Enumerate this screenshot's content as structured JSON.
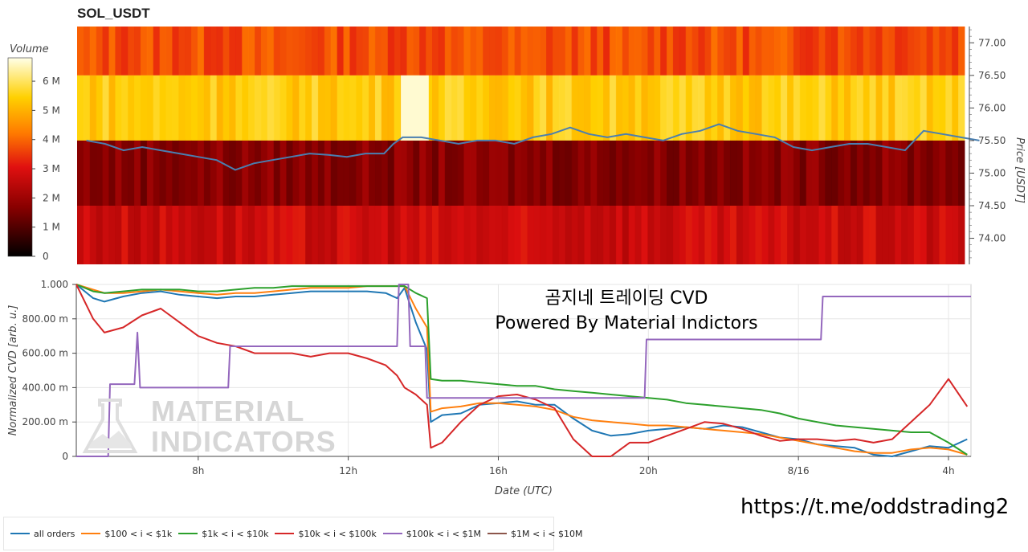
{
  "title": "SOL_USDT",
  "colorbar": {
    "label": "Volume",
    "ticks": [
      {
        "label": "6 M",
        "value": 6000000
      },
      {
        "label": "5 M",
        "value": 5000000
      },
      {
        "label": "4 M",
        "value": 4000000
      },
      {
        "label": "3 M",
        "value": 3000000
      },
      {
        "label": "2 M",
        "value": 2000000
      },
      {
        "label": "1 M",
        "value": 1000000
      },
      {
        "label": "0",
        "value": 0
      }
    ],
    "range": [
      0,
      6800000
    ]
  },
  "watermark": {
    "line1": "MATERIAL",
    "line2": "INDICATORS"
  },
  "cvd_title": {
    "line1": "곰지네 트레이딩 CVD",
    "line2": "Powered By Material Indictors"
  },
  "url": "https://t.me/oddstrading2",
  "colors": {
    "all_orders": "#1f77b4",
    "b100_1k": "#ff7f0e",
    "b1k_10k": "#2ca02c",
    "b10k_100k": "#d62728",
    "b100k_1m": "#9467bd",
    "b1m_10m": "#8c564b"
  },
  "chart_data": [
    {
      "type": "heatmap",
      "title": "SOL_USDT",
      "ylabel": "Price [USDT]",
      "yticks": [
        "77.00",
        "76.50",
        "76.00",
        "75.50",
        "75.00",
        "74.50",
        "74.00"
      ],
      "ylim": [
        73.6,
        77.25
      ],
      "bands": [
        {
          "price_low": 76.5,
          "price_high": 77.25,
          "level": 0.55,
          "volume": "~3.7 M"
        },
        {
          "price_low": 75.5,
          "price_high": 76.5,
          "level": 0.8,
          "volume": "~4.3 M"
        },
        {
          "price_low": 74.5,
          "price_high": 75.5,
          "level": 0.25,
          "volume": "~1.6 M"
        },
        {
          "price_low": 73.6,
          "price_high": 74.5,
          "level": 0.4,
          "volume": "~2.4 M"
        }
      ],
      "price_line": {
        "name": "price",
        "color": "#4a7fb0",
        "x_hours": [
          5,
          5.5,
          6,
          6.5,
          7,
          7.5,
          8,
          8.5,
          9,
          9.5,
          10,
          10.5,
          11,
          11.5,
          12,
          12.5,
          13,
          13.25,
          13.5,
          14,
          14.5,
          15,
          15.5,
          16,
          16.5,
          17,
          17.5,
          18,
          18.5,
          19,
          19.5,
          20,
          20.5,
          21,
          21.5,
          22,
          22.5,
          23,
          23.5,
          24,
          24.5,
          25,
          25.5,
          26,
          26.5,
          27,
          27.5,
          28,
          28.5,
          29
        ],
        "y": [
          75.5,
          75.45,
          75.35,
          75.4,
          75.35,
          75.3,
          75.25,
          75.2,
          75.05,
          75.15,
          75.2,
          75.25,
          75.3,
          75.28,
          75.25,
          75.3,
          75.3,
          75.45,
          75.55,
          75.55,
          75.5,
          75.45,
          75.5,
          75.5,
          75.45,
          75.55,
          75.6,
          75.7,
          75.6,
          75.55,
          75.6,
          75.55,
          75.5,
          75.6,
          75.65,
          75.75,
          75.65,
          75.6,
          75.55,
          75.4,
          75.35,
          75.4,
          75.45,
          75.45,
          75.4,
          75.35,
          75.65,
          75.6,
          75.55,
          75.5
        ]
      }
    },
    {
      "type": "line",
      "xlabel": "Date (UTC)",
      "ylabel": "Normalized CVD [arb. u.]",
      "xticks": [
        {
          "label": "8h",
          "hour": 8
        },
        {
          "label": "12h",
          "hour": 12
        },
        {
          "label": "16h",
          "hour": 16
        },
        {
          "label": "20h",
          "hour": 20
        },
        {
          "label": "8/16",
          "hour": 24
        },
        {
          "label": "4h",
          "hour": 28
        }
      ],
      "xlim": [
        4.75,
        28.6
      ],
      "yticks": [
        {
          "label": "1.000",
          "value": 1.0
        },
        {
          "label": "800.00 m",
          "value": 0.8
        },
        {
          "label": "600.00 m",
          "value": 0.6
        },
        {
          "label": "400.00 m",
          "value": 0.4
        },
        {
          "label": "200.00 m",
          "value": 0.2
        },
        {
          "label": "0",
          "value": 0
        }
      ],
      "ylim": [
        0,
        1.0
      ],
      "legend_position": "bottom-left",
      "series": [
        {
          "name": "all orders",
          "key": "all_orders",
          "x": [
            4.75,
            5.2,
            5.5,
            6,
            6.5,
            7,
            7.5,
            8,
            8.5,
            9,
            9.5,
            10,
            10.5,
            11,
            11.5,
            12,
            12.5,
            13,
            13.3,
            13.5,
            13.8,
            14.1,
            14.2,
            14.5,
            15,
            15.5,
            16,
            16.5,
            17,
            17.5,
            18,
            18.5,
            19,
            19.5,
            20,
            20.5,
            21,
            21.5,
            22,
            22.5,
            23,
            23.5,
            24,
            24.5,
            25,
            25.5,
            26,
            26.5,
            27,
            27.5,
            28,
            28.5
          ],
          "y": [
            1.0,
            0.92,
            0.9,
            0.93,
            0.95,
            0.96,
            0.94,
            0.93,
            0.92,
            0.93,
            0.93,
            0.94,
            0.95,
            0.96,
            0.96,
            0.96,
            0.96,
            0.95,
            0.92,
            0.98,
            0.78,
            0.62,
            0.2,
            0.24,
            0.25,
            0.3,
            0.31,
            0.32,
            0.3,
            0.3,
            0.22,
            0.15,
            0.12,
            0.13,
            0.15,
            0.16,
            0.17,
            0.16,
            0.18,
            0.17,
            0.14,
            0.11,
            0.1,
            0.07,
            0.06,
            0.05,
            0.01,
            0.0,
            0.03,
            0.06,
            0.05,
            0.1
          ]
        },
        {
          "name": "$100 < i < $1k",
          "key": "b100_1k",
          "x": [
            4.75,
            5.2,
            5.5,
            6,
            6.5,
            7,
            7.5,
            8,
            8.5,
            9,
            9.5,
            10,
            10.5,
            11,
            11.5,
            12,
            12.5,
            13,
            13.3,
            13.5,
            13.8,
            14.1,
            14.2,
            14.5,
            15,
            15.5,
            16,
            16.5,
            17,
            17.5,
            18,
            18.5,
            19,
            19.5,
            20,
            20.5,
            21,
            21.5,
            22,
            22.5,
            23,
            23.5,
            24,
            24.5,
            25,
            25.5,
            26,
            26.5,
            27,
            27.5,
            28,
            28.5
          ],
          "y": [
            1.0,
            0.97,
            0.95,
            0.95,
            0.96,
            0.97,
            0.96,
            0.95,
            0.94,
            0.95,
            0.95,
            0.96,
            0.97,
            0.98,
            0.98,
            0.98,
            0.99,
            0.99,
            0.99,
            0.99,
            0.86,
            0.75,
            0.26,
            0.28,
            0.29,
            0.31,
            0.31,
            0.3,
            0.29,
            0.27,
            0.23,
            0.21,
            0.2,
            0.19,
            0.18,
            0.18,
            0.17,
            0.16,
            0.15,
            0.14,
            0.13,
            0.11,
            0.09,
            0.07,
            0.05,
            0.03,
            0.02,
            0.02,
            0.04,
            0.05,
            0.04,
            0.01
          ]
        },
        {
          "name": "$1k < i < $10k",
          "key": "b1k_10k",
          "x": [
            4.75,
            5.2,
            5.5,
            6,
            6.5,
            7,
            7.5,
            8,
            8.5,
            9,
            9.5,
            10,
            10.5,
            11,
            11.5,
            12,
            12.5,
            13,
            13.3,
            13.5,
            13.8,
            14.1,
            14.2,
            14.5,
            15,
            15.5,
            16,
            16.5,
            17,
            17.5,
            18,
            18.5,
            19,
            19.5,
            20,
            20.5,
            21,
            21.5,
            22,
            22.5,
            23,
            23.5,
            24,
            24.5,
            25,
            25.5,
            26,
            26.5,
            27,
            27.5,
            28,
            28.5
          ],
          "y": [
            1.0,
            0.96,
            0.95,
            0.96,
            0.97,
            0.97,
            0.97,
            0.96,
            0.96,
            0.97,
            0.98,
            0.98,
            0.99,
            0.99,
            0.99,
            0.99,
            0.99,
            0.99,
            0.99,
            0.99,
            0.95,
            0.92,
            0.45,
            0.44,
            0.44,
            0.43,
            0.42,
            0.41,
            0.41,
            0.39,
            0.38,
            0.37,
            0.36,
            0.35,
            0.34,
            0.33,
            0.31,
            0.3,
            0.29,
            0.28,
            0.27,
            0.25,
            0.22,
            0.2,
            0.18,
            0.17,
            0.16,
            0.15,
            0.14,
            0.14,
            0.08,
            0.01
          ]
        },
        {
          "name": "$10k < i < $100k",
          "key": "b10k_100k",
          "x": [
            4.75,
            5.2,
            5.5,
            6,
            6.5,
            7,
            7.5,
            8,
            8.5,
            9,
            9.5,
            10,
            10.5,
            11,
            11.5,
            12,
            12.5,
            13,
            13.3,
            13.5,
            13.8,
            14.1,
            14.2,
            14.5,
            15,
            15.5,
            16,
            16.5,
            17,
            17.5,
            18,
            18.5,
            19,
            19.5,
            20,
            20.5,
            21,
            21.5,
            22,
            22.5,
            23,
            23.5,
            24,
            24.5,
            25,
            25.5,
            26,
            26.5,
            27,
            27.5,
            28,
            28.5
          ],
          "y": [
            1.0,
            0.8,
            0.72,
            0.75,
            0.82,
            0.86,
            0.78,
            0.7,
            0.66,
            0.64,
            0.6,
            0.6,
            0.6,
            0.58,
            0.6,
            0.6,
            0.57,
            0.53,
            0.47,
            0.4,
            0.36,
            0.3,
            0.05,
            0.08,
            0.2,
            0.3,
            0.35,
            0.36,
            0.33,
            0.28,
            0.1,
            0.0,
            0.0,
            0.08,
            0.08,
            0.12,
            0.16,
            0.2,
            0.19,
            0.16,
            0.12,
            0.09,
            0.1,
            0.1,
            0.09,
            0.1,
            0.08,
            0.1,
            0.2,
            0.3,
            0.45,
            0.29
          ]
        },
        {
          "name": "$100k < i < $1M",
          "key": "b100k_1m",
          "x": [
            4.75,
            5.6,
            5.65,
            6.3,
            6.38,
            6.45,
            6.5,
            8.8,
            8.85,
            13.3,
            13.35,
            13.6,
            13.65,
            14.05,
            14.1,
            14.2,
            19.9,
            19.95,
            24.6,
            24.65,
            28.6
          ],
          "y": [
            0.0,
            0.0,
            0.42,
            0.42,
            0.72,
            0.4,
            0.4,
            0.4,
            0.64,
            0.64,
            1.0,
            1.0,
            0.64,
            0.64,
            0.34,
            0.34,
            0.34,
            0.68,
            0.68,
            0.93,
            0.93
          ]
        },
        {
          "name": "$1M < i < $10M",
          "key": "b1m_10m",
          "x": [],
          "y": []
        }
      ]
    }
  ]
}
